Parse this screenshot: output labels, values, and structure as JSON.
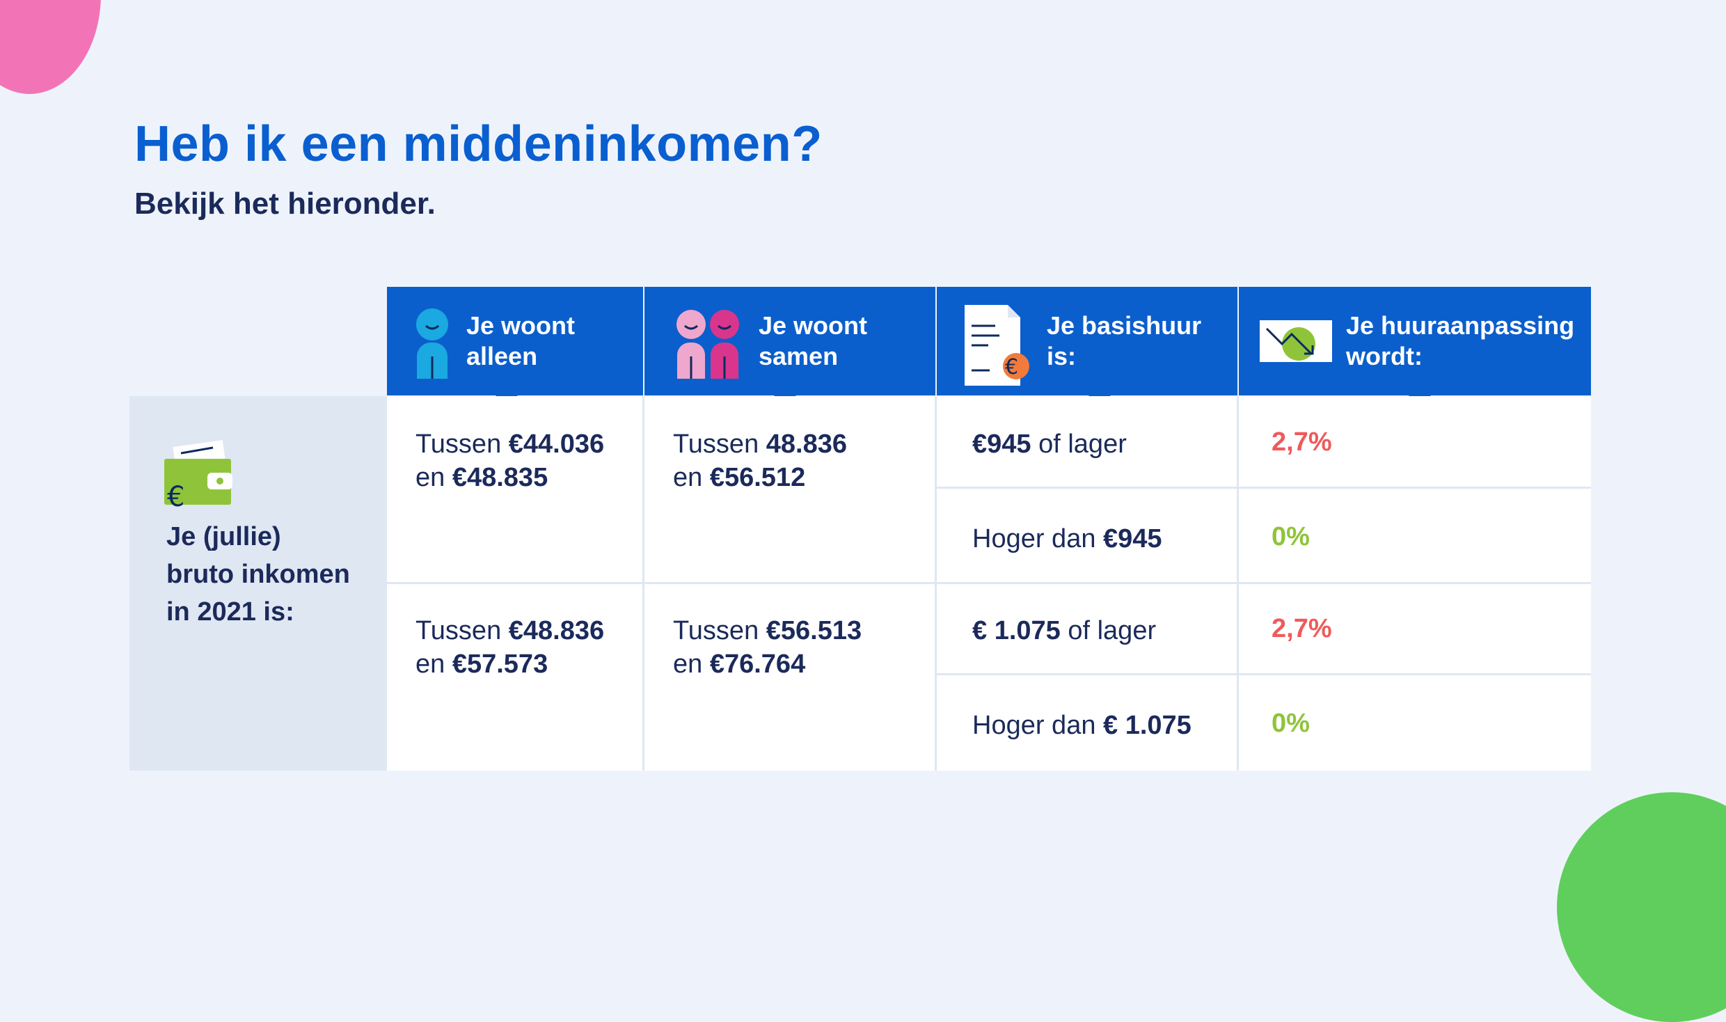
{
  "title": "Heb ik een middeninkomen?",
  "subtitle": "Bekijk het hieronder.",
  "colors": {
    "brand_blue": "#0b5fcc",
    "increase": "#ef5a5a",
    "no_change": "#8fc43a"
  },
  "headers": [
    {
      "line1": "Je woont",
      "line2": "alleen",
      "icon": "single-person-icon"
    },
    {
      "line1": "Je woont",
      "line2": "samen",
      "icon": "two-persons-icon"
    },
    {
      "line1": "Je basishuur",
      "line2": "is:",
      "icon": "rent-document-icon"
    },
    {
      "line1": "Je huuraanpassing",
      "line2": "wordt:",
      "icon": "trend-down-icon"
    }
  ],
  "row_label": {
    "line1": "Je (jullie)",
    "line2": "bruto inkomen",
    "line3": "in 2021 is:",
    "icon": "wallet-icon"
  },
  "groups": [
    {
      "alleen": {
        "prefix": "Tussen",
        "from": "€44.036",
        "and": "en",
        "to": "€48.835"
      },
      "samen": {
        "prefix": "Tussen",
        "from": "48.836",
        "and": "en",
        "to": "€56.512"
      },
      "rows": [
        {
          "rent_bold": "€945",
          "rent_rest": "of lager",
          "rent_prefix": "",
          "pct": "2,7%"
        },
        {
          "rent_prefix": "Hoger dan",
          "rent_bold": "€945",
          "rent_rest": "",
          "pct": "0%"
        }
      ]
    },
    {
      "alleen": {
        "prefix": "Tussen",
        "from": "€48.836",
        "and": "en",
        "to": "€57.573"
      },
      "samen": {
        "prefix": "Tussen",
        "from": "€56.513",
        "and": "en",
        "to": "€76.764"
      },
      "rows": [
        {
          "rent_bold": "€ 1.075",
          "rent_rest": "of lager",
          "rent_prefix": "",
          "pct": "2,7%"
        },
        {
          "rent_prefix": "Hoger dan",
          "rent_bold": "€ 1.075",
          "rent_rest": "",
          "pct": "0%"
        }
      ]
    }
  ]
}
